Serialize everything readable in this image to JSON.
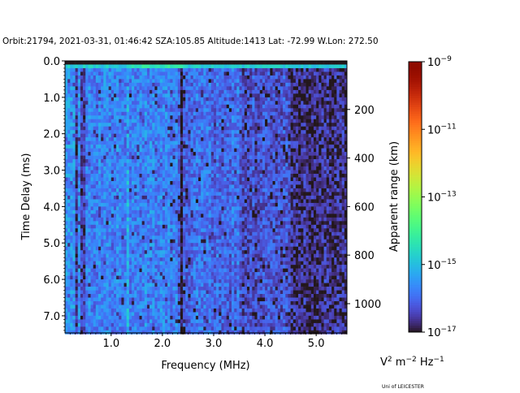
{
  "chart_data": {
    "type": "heatmap",
    "title": "Orbit:21794, 2021-03-31, 01:46:42 SZA:105.85 Altitude:1413 Lat: -72.99 W.Lon: 272.50",
    "xlabel": "Frequency (MHz)",
    "ylabel": "Time Delay (ms)",
    "y2label": "Apparent range (km)",
    "xlim": [
      0.1,
      5.6
    ],
    "ylim": [
      7.47,
      0.0
    ],
    "xticks": [
      1.0,
      2.0,
      3.0,
      4.0,
      5.0
    ],
    "xtick_labels": [
      "1.0",
      "2.0",
      "3.0",
      "4.0",
      "5.0"
    ],
    "yticks": [
      0,
      1,
      2,
      3,
      4,
      5,
      6,
      7
    ],
    "ytick_labels": [
      "0.0",
      "1.0",
      "2.0",
      "3.0",
      "4.0",
      "5.0",
      "6.0",
      "7.0"
    ],
    "y2ticks_km": [
      200,
      400,
      600,
      800,
      1000
    ],
    "y2tick_labels": [
      "200",
      "400",
      "600",
      "800",
      "1000"
    ],
    "km_per_ms": 150,
    "colorbar": {
      "colormap": "turbo",
      "scale": "log",
      "range_log10": [
        -17,
        -9
      ],
      "ticks_log10": [
        -9,
        -11,
        -13,
        -15,
        -17
      ],
      "tick_base": "10",
      "tick_exponents": [
        "−9",
        "−11",
        "−13",
        "−15",
        "−17"
      ],
      "unit_label": {
        "v": "V",
        "v_exp": "2",
        "m": " m",
        "m_exp": "−2",
        "hz": " Hz",
        "hz_exp": "−1"
      }
    },
    "grid": {
      "freq_step_mhz": 0.05,
      "time_step_ms": 0.1
    },
    "mean_log10_by_freq": [
      {
        "fmax": 0.3,
        "value": -15.4
      },
      {
        "fmax": 2.3,
        "value": -15.7
      },
      {
        "fmax": 3.5,
        "value": -15.95
      },
      {
        "fmax": 4.5,
        "value": -16.25
      },
      {
        "fmax": 5.6,
        "value": -16.65
      }
    ],
    "features": {
      "dark_rows_ms_below": 0.13,
      "bright_row_ms": 0.17,
      "bright_row_log10": -14.3,
      "bright_columns_mhz": [
        1.33
      ],
      "dark_columns_mhz": [
        0.33,
        0.45,
        2.38
      ]
    }
  },
  "footer": {
    "credit": "Uni of LEICESTER"
  }
}
